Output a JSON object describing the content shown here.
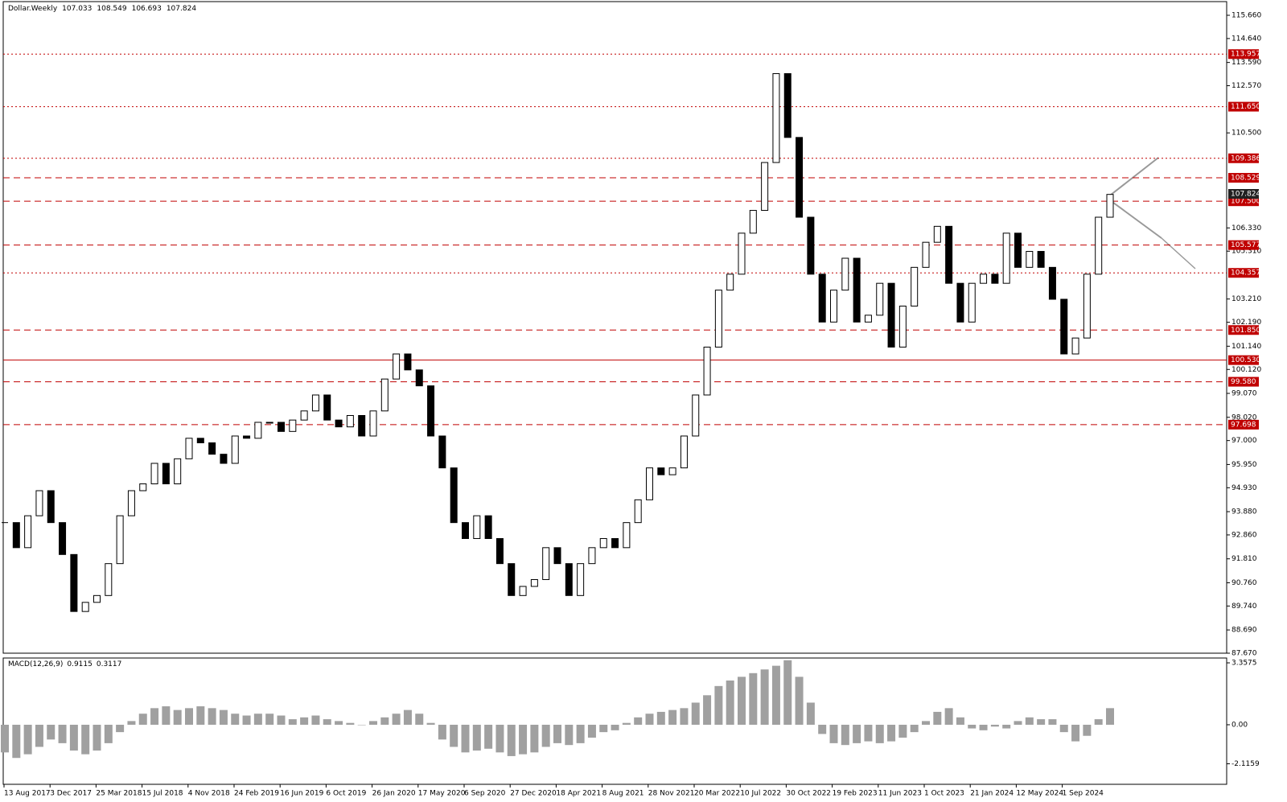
{
  "chart_data": [
    {
      "type": "candlestick",
      "title": "Dollar.Weekly",
      "header_values": [
        107.033,
        108.549,
        106.693,
        107.824
      ],
      "date_labels": [
        "13 Aug 2017",
        "3 Dec 2017",
        "25 Mar 2018",
        "15 Jul 2018",
        "4 Nov 2018",
        "24 Feb 2019",
        "16 Jun 2019",
        "6 Oct 2019",
        "26 Jan 2020",
        "17 May 2020",
        "6 Sep 2020",
        "27 Dec 2020",
        "18 Apr 2021",
        "8 Aug 2021",
        "28 Nov 2021",
        "20 Mar 2022",
        "10 Jul 2022",
        "30 Oct 2022",
        "19 Feb 2023",
        "11 Jun 2023",
        "1 Oct 2023",
        "21 Jan 2024",
        "12 May 2024",
        "1 Sep 2024"
      ],
      "values": [
        93.4,
        92.3,
        93.7,
        94.8,
        93.4,
        92.0,
        89.5,
        89.9,
        90.2,
        91.6,
        93.7,
        94.8,
        95.1,
        96.0,
        95.1,
        96.2,
        97.1,
        96.9,
        96.4,
        96.0,
        97.2,
        97.1,
        97.8,
        97.8,
        97.4,
        97.9,
        98.3,
        99.0,
        97.9,
        97.6,
        98.1,
        97.2,
        98.3,
        99.7,
        100.8,
        100.1,
        99.4,
        97.2,
        95.8,
        93.4,
        92.7,
        93.7,
        92.7,
        91.6,
        90.2,
        90.6,
        90.9,
        92.3,
        91.6,
        90.2,
        91.6,
        92.3,
        92.7,
        92.3,
        93.4,
        94.4,
        95.8,
        95.5,
        95.8,
        97.2,
        99.0,
        101.1,
        103.6,
        104.3,
        106.1,
        107.1,
        109.2,
        113.1,
        110.3,
        106.8,
        104.3,
        102.2,
        103.6,
        105.0,
        102.2,
        102.5,
        103.9,
        101.1,
        102.9,
        104.6,
        105.7,
        106.4,
        103.9,
        102.2,
        103.9,
        104.3,
        103.9,
        106.1,
        104.6,
        105.3,
        104.6,
        103.2,
        100.8,
        101.5,
        104.3,
        106.8,
        107.8
      ],
      "color": "#000000",
      "ylim": [
        87.67,
        116.26
      ],
      "yticks": [
        {
          "value": 115.66,
          "label": "115.660"
        },
        {
          "value": 114.64,
          "label": "114.640"
        },
        {
          "value": 113.59,
          "label": "113.590"
        },
        {
          "value": 112.57,
          "label": "112.570"
        },
        {
          "value": 110.5,
          "label": "110.500"
        },
        {
          "value": 106.33,
          "label": "106.330"
        },
        {
          "value": 105.31,
          "label": "105.310"
        },
        {
          "value": 103.21,
          "label": "103.210"
        },
        {
          "value": 102.19,
          "label": "102.190"
        },
        {
          "value": 101.14,
          "label": "101.140"
        },
        {
          "value": 100.12,
          "label": "100.120"
        },
        {
          "value": 99.07,
          "label": "99.070"
        },
        {
          "value": 98.02,
          "label": "98.020"
        },
        {
          "value": 97.0,
          "label": "97.000"
        },
        {
          "value": 95.95,
          "label": "95.950"
        },
        {
          "value": 94.93,
          "label": "94.930"
        },
        {
          "value": 93.88,
          "label": "93.880"
        },
        {
          "value": 92.86,
          "label": "92.860"
        },
        {
          "value": 91.81,
          "label": "91.810"
        },
        {
          "value": 90.76,
          "label": "90.760"
        },
        {
          "value": 89.74,
          "label": "89.740"
        },
        {
          "value": 88.69,
          "label": "88.690"
        },
        {
          "value": 87.67,
          "label": "87.670"
        }
      ],
      "levels": [
        {
          "value": 113.957,
          "label": "113.957",
          "style": "dotted"
        },
        {
          "value": 111.65,
          "label": "111.650",
          "style": "dotted"
        },
        {
          "value": 109.386,
          "label": "109.386",
          "style": "dotted"
        },
        {
          "value": 108.529,
          "label": "108.529",
          "style": "dashed"
        },
        {
          "value": 107.5,
          "label": "107.500",
          "style": "dashed"
        },
        {
          "value": 105.577,
          "label": "105.577",
          "style": "dashed"
        },
        {
          "value": 104.357,
          "label": "104.357",
          "style": "dotted"
        },
        {
          "value": 101.85,
          "label": "101.850",
          "style": "dashed"
        },
        {
          "value": 100.53,
          "label": "100.530",
          "style": "solid"
        },
        {
          "value": 99.58,
          "label": "99.580",
          "style": "dashed"
        },
        {
          "value": 97.698,
          "label": "97.698",
          "style": "dashed"
        }
      ],
      "level_color": "#c00000",
      "last": 107.824
    },
    {
      "type": "histogram",
      "title": "MACD(12,26,9)",
      "header_values": [
        0.9115,
        0.3117
      ],
      "values": [
        -1.5,
        -1.8,
        -1.6,
        -1.2,
        -0.8,
        -1.0,
        -1.4,
        -1.6,
        -1.4,
        -1.0,
        -0.4,
        0.2,
        0.6,
        0.9,
        1.0,
        0.8,
        0.9,
        1.0,
        0.9,
        0.8,
        0.6,
        0.5,
        0.6,
        0.6,
        0.5,
        0.3,
        0.4,
        0.5,
        0.3,
        0.2,
        0.1,
        0.0,
        0.2,
        0.4,
        0.6,
        0.8,
        0.6,
        0.1,
        -0.8,
        -1.2,
        -1.5,
        -1.4,
        -1.3,
        -1.5,
        -1.7,
        -1.6,
        -1.5,
        -1.2,
        -1.0,
        -1.1,
        -1.0,
        -0.7,
        -0.4,
        -0.3,
        0.1,
        0.4,
        0.6,
        0.7,
        0.8,
        0.9,
        1.2,
        1.6,
        2.1,
        2.4,
        2.6,
        2.8,
        3.0,
        3.2,
        3.5,
        2.6,
        1.2,
        -0.5,
        -1.0,
        -1.1,
        -1.0,
        -0.9,
        -1.0,
        -0.9,
        -0.7,
        -0.4,
        0.2,
        0.7,
        0.9,
        0.4,
        -0.2,
        -0.3,
        -0.1,
        -0.2,
        0.2,
        0.4,
        0.3,
        0.3,
        -0.4,
        -0.9,
        -0.6,
        0.3,
        0.9
      ],
      "color": "#a0a0a0",
      "ylim": [
        -3.23,
        3.62
      ],
      "yticks": [
        {
          "value": 3.3575,
          "label": "3.3575"
        },
        {
          "value": 0,
          "label": "0.00"
        },
        {
          "value": -2.1159,
          "label": "-2.1159"
        }
      ]
    }
  ]
}
